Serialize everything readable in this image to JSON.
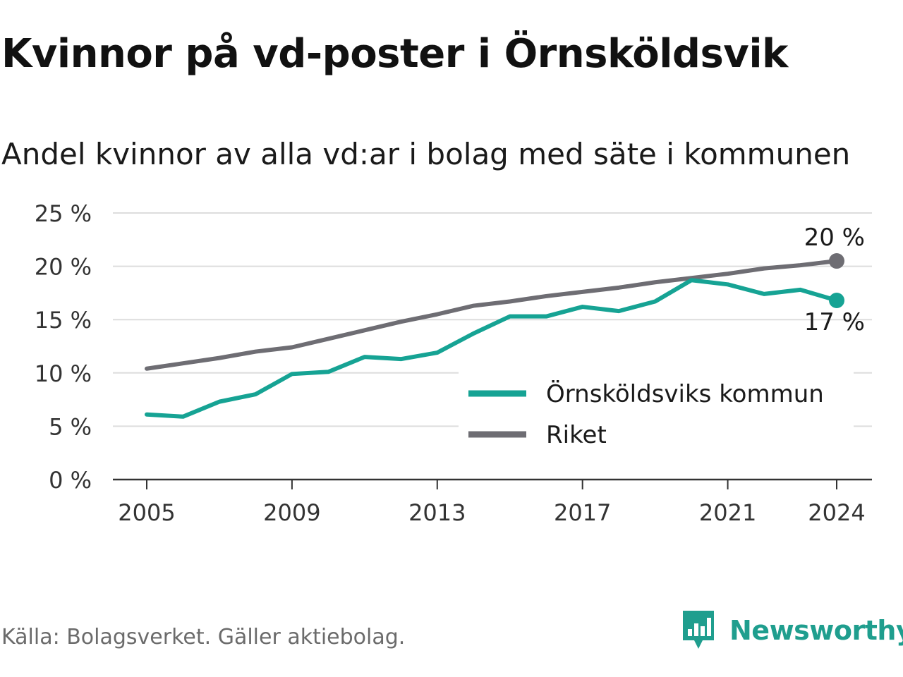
{
  "header": {
    "title": "Kvinnor på vd-poster i Örnsköldsvik",
    "subtitle": "Andel kvinnor av alla vd:ar i bolag med säte i kommunen"
  },
  "footer": {
    "source": "Källa: Bolagsverket. Gäller aktiebolag.",
    "brand": "Newsworthy",
    "brand_icon": "bar-chart-speech-bubble-icon"
  },
  "colors": {
    "series_local": "#16a394",
    "series_national": "#6e6d73",
    "grid": "#dddddd",
    "axis": "#333333",
    "brand": "#1f9e8e"
  },
  "chart_data": {
    "type": "line",
    "title": "Kvinnor på vd-poster i Örnsköldsvik",
    "subtitle": "Andel kvinnor av alla vd:ar i bolag med säte i kommunen",
    "xlabel": "",
    "ylabel": "",
    "x": [
      2005,
      2006,
      2007,
      2008,
      2009,
      2010,
      2011,
      2012,
      2013,
      2014,
      2015,
      2016,
      2017,
      2018,
      2019,
      2020,
      2021,
      2022,
      2023,
      2024
    ],
    "x_ticks": [
      "2005",
      "2009",
      "2013",
      "2017",
      "2021",
      "2024"
    ],
    "y_ticks": [
      "0 %",
      "5 %",
      "10 %",
      "15 %",
      "20 %",
      "25 %"
    ],
    "ylim": [
      0,
      25
    ],
    "grid": true,
    "legend_position": "bottom-right",
    "series": [
      {
        "name": "Örnsköldsviks kommun",
        "color": "#16a394",
        "values": [
          6.1,
          5.9,
          7.3,
          8.0,
          9.9,
          10.1,
          11.5,
          11.3,
          11.9,
          13.7,
          15.3,
          15.3,
          16.2,
          15.8,
          16.7,
          18.7,
          18.3,
          17.4,
          17.8,
          16.8
        ],
        "end_label": "17 %"
      },
      {
        "name": "Riket",
        "color": "#6e6d73",
        "values": [
          10.4,
          10.9,
          11.4,
          12.0,
          12.4,
          13.2,
          14.0,
          14.8,
          15.5,
          16.3,
          16.7,
          17.2,
          17.6,
          18.0,
          18.5,
          18.9,
          19.3,
          19.8,
          20.1,
          20.5
        ],
        "end_label": "20 %"
      }
    ]
  }
}
